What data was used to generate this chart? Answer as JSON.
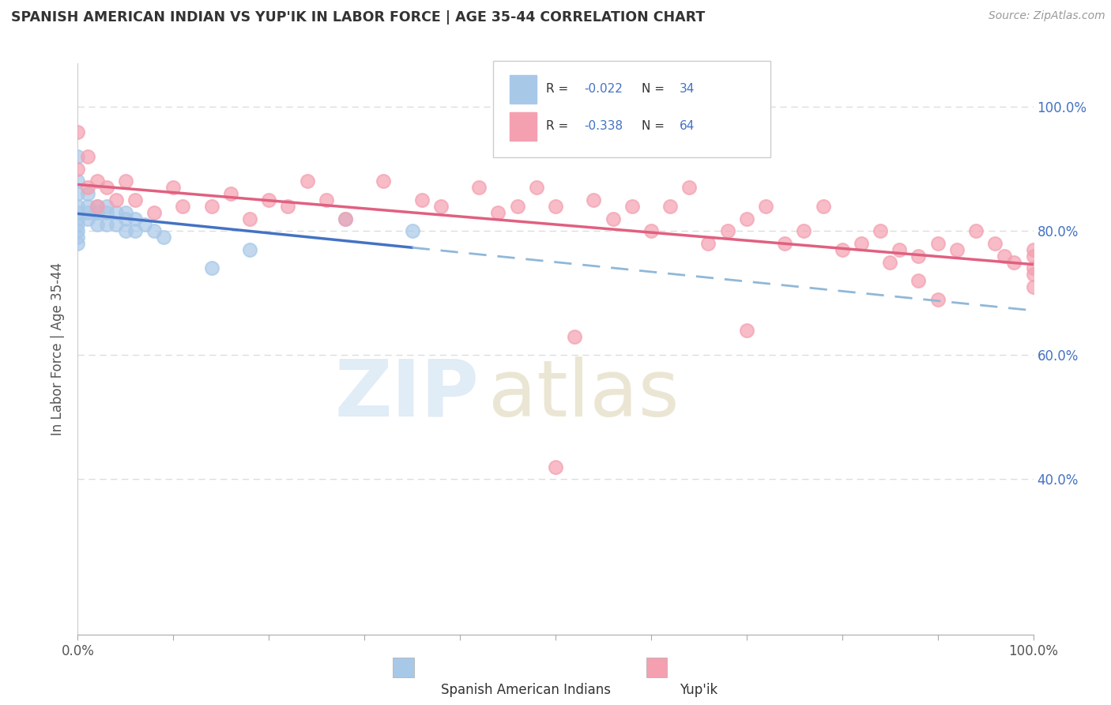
{
  "title": "SPANISH AMERICAN INDIAN VS YUP'IK IN LABOR FORCE | AGE 35-44 CORRELATION CHART",
  "source": "Source: ZipAtlas.com",
  "ylabel": "In Labor Force | Age 35-44",
  "watermark_zip": "ZIP",
  "watermark_atlas": "atlas",
  "legend_label1": "Spanish American Indians",
  "legend_label2": "Yup'ik",
  "R1": -0.022,
  "N1": 34,
  "R2": -0.338,
  "N2": 64,
  "color_blue": "#a8c8e8",
  "color_pink": "#f4a0b0",
  "color_blue_line": "#4472c4",
  "color_pink_line": "#e06080",
  "color_blue_dashed": "#90b8d8",
  "background_color": "#ffffff",
  "grid_color": "#dddddd",
  "right_tick_color": "#4472c4",
  "blue_x": [
    0.0,
    0.0,
    0.0,
    0.0,
    0.0,
    0.0,
    0.0,
    0.0,
    0.0,
    0.0,
    0.01,
    0.01,
    0.01,
    0.01,
    0.02,
    0.02,
    0.02,
    0.03,
    0.03,
    0.03,
    0.04,
    0.04,
    0.05,
    0.05,
    0.05,
    0.06,
    0.06,
    0.07,
    0.08,
    0.09,
    0.14,
    0.18,
    0.28,
    0.35
  ],
  "blue_y": [
    0.92,
    0.88,
    0.86,
    0.84,
    0.83,
    0.82,
    0.81,
    0.8,
    0.79,
    0.78,
    0.86,
    0.84,
    0.83,
    0.82,
    0.84,
    0.83,
    0.81,
    0.84,
    0.83,
    0.81,
    0.83,
    0.81,
    0.83,
    0.82,
    0.8,
    0.82,
    0.8,
    0.81,
    0.8,
    0.79,
    0.74,
    0.77,
    0.82,
    0.8
  ],
  "pink_x": [
    0.0,
    0.0,
    0.01,
    0.01,
    0.02,
    0.02,
    0.03,
    0.04,
    0.05,
    0.06,
    0.08,
    0.1,
    0.11,
    0.14,
    0.16,
    0.18,
    0.2,
    0.22,
    0.24,
    0.26,
    0.28,
    0.32,
    0.36,
    0.38,
    0.42,
    0.44,
    0.46,
    0.48,
    0.5,
    0.52,
    0.54,
    0.56,
    0.58,
    0.6,
    0.62,
    0.64,
    0.66,
    0.68,
    0.7,
    0.72,
    0.74,
    0.76,
    0.78,
    0.8,
    0.82,
    0.84,
    0.86,
    0.88,
    0.9,
    0.92,
    0.94,
    0.96,
    0.97,
    0.98,
    1.0,
    1.0,
    1.0,
    1.0,
    1.0,
    0.5,
    0.7,
    0.85,
    0.88,
    0.9
  ],
  "pink_y": [
    0.96,
    0.9,
    0.92,
    0.87,
    0.88,
    0.84,
    0.87,
    0.85,
    0.88,
    0.85,
    0.83,
    0.87,
    0.84,
    0.84,
    0.86,
    0.82,
    0.85,
    0.84,
    0.88,
    0.85,
    0.82,
    0.88,
    0.85,
    0.84,
    0.87,
    0.83,
    0.84,
    0.87,
    0.84,
    0.63,
    0.85,
    0.82,
    0.84,
    0.8,
    0.84,
    0.87,
    0.78,
    0.8,
    0.82,
    0.84,
    0.78,
    0.8,
    0.84,
    0.77,
    0.78,
    0.8,
    0.77,
    0.76,
    0.78,
    0.77,
    0.8,
    0.78,
    0.76,
    0.75,
    0.77,
    0.76,
    0.74,
    0.73,
    0.71,
    0.42,
    0.64,
    0.75,
    0.72,
    0.69
  ]
}
